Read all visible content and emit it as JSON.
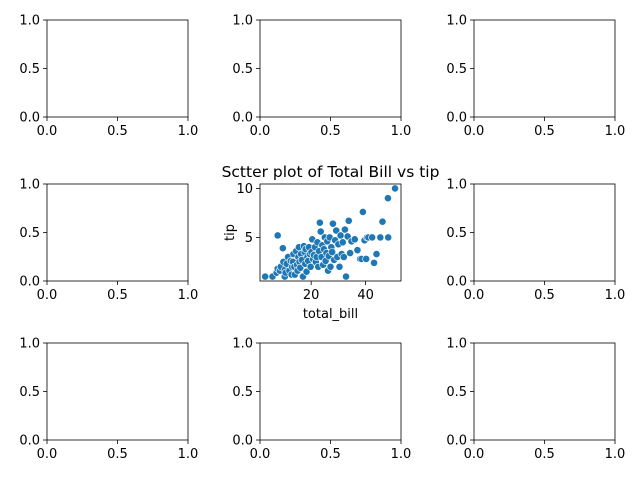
{
  "chart_data": [
    {
      "type": "empty",
      "xlim": [
        0,
        1
      ],
      "ylim": [
        0,
        1
      ],
      "xticks": [
        "0.0",
        "0.5",
        "1.0"
      ],
      "yticks": [
        "0.0",
        "0.5",
        "1.0"
      ]
    },
    {
      "type": "empty",
      "xlim": [
        0,
        1
      ],
      "ylim": [
        0,
        1
      ],
      "xticks": [
        "0.0",
        "0.5",
        "1.0"
      ],
      "yticks": [
        "0.0",
        "0.5",
        "1.0"
      ]
    },
    {
      "type": "empty",
      "xlim": [
        0,
        1
      ],
      "ylim": [
        0,
        1
      ],
      "xticks": [
        "0.0",
        "0.5",
        "1.0"
      ],
      "yticks": [
        "0.0",
        "0.5",
        "1.0"
      ]
    },
    {
      "type": "empty",
      "xlim": [
        0,
        1
      ],
      "ylim": [
        0,
        1
      ],
      "xticks": [
        "0.0",
        "0.5",
        "1.0"
      ],
      "yticks": [
        "0.0",
        "0.5",
        "1.0"
      ]
    },
    {
      "type": "scatter",
      "title": "Sctter plot of Total Bill vs tip",
      "xlabel": "total_bill",
      "ylabel": "tip",
      "xlim": [
        1.2,
        53.0
      ],
      "ylim": [
        0.55,
        10.45
      ],
      "xticks": [
        {
          "v": 20,
          "label": "20"
        },
        {
          "v": 30,
          "label": "30"
        },
        {
          "v": 40,
          "label": "40"
        },
        {
          "v": 50,
          "label": "50"
        }
      ],
      "yticks": [
        {
          "v": 5,
          "label": "5"
        },
        {
          "v": 10,
          "label": "10"
        }
      ],
      "x_tick_values_shown": [
        "20",
        "40"
      ],
      "color": "#1f77b4",
      "points": [
        [
          3.1,
          1.0
        ],
        [
          5.8,
          1.0
        ],
        [
          7.3,
          1.4
        ],
        [
          7.7,
          5.2
        ],
        [
          7.7,
          1.8
        ],
        [
          8.5,
          1.6
        ],
        [
          8.8,
          2.0
        ],
        [
          9.6,
          3.9
        ],
        [
          9.8,
          2.5
        ],
        [
          10.3,
          1.7
        ],
        [
          10.3,
          1.0
        ],
        [
          10.6,
          1.4
        ],
        [
          11.0,
          2.3
        ],
        [
          11.5,
          3.0
        ],
        [
          12.0,
          1.6
        ],
        [
          12.5,
          2.6
        ],
        [
          12.8,
          1.2
        ],
        [
          13.0,
          2.0
        ],
        [
          13.3,
          2.5
        ],
        [
          13.5,
          3.3
        ],
        [
          13.8,
          2.0
        ],
        [
          14.0,
          1.2
        ],
        [
          14.5,
          3.6
        ],
        [
          14.8,
          2.2
        ],
        [
          15.0,
          1.6
        ],
        [
          15.3,
          3.0
        ],
        [
          15.5,
          4.0
        ],
        [
          15.7,
          2.5
        ],
        [
          16.0,
          1.9
        ],
        [
          16.3,
          3.3
        ],
        [
          16.6,
          2.7
        ],
        [
          17.0,
          1.0
        ],
        [
          17.3,
          4.1
        ],
        [
          17.6,
          3.5
        ],
        [
          17.8,
          2.3
        ],
        [
          18.0,
          3.8
        ],
        [
          18.3,
          1.5
        ],
        [
          18.6,
          3.0
        ],
        [
          18.9,
          2.6
        ],
        [
          19.2,
          4.0
        ],
        [
          19.5,
          3.3
        ],
        [
          19.8,
          2.0
        ],
        [
          20.1,
          3.5
        ],
        [
          20.4,
          4.8
        ],
        [
          20.7,
          2.8
        ],
        [
          21.0,
          3.2
        ],
        [
          21.4,
          4.0
        ],
        [
          21.7,
          2.5
        ],
        [
          22.0,
          3.0
        ],
        [
          22.3,
          4.5
        ],
        [
          22.6,
          2.0
        ],
        [
          22.9,
          3.6
        ],
        [
          23.2,
          6.5
        ],
        [
          23.5,
          5.6
        ],
        [
          23.8,
          3.0
        ],
        [
          24.1,
          4.2
        ],
        [
          24.4,
          2.2
        ],
        [
          24.7,
          3.8
        ],
        [
          25.0,
          5.0
        ],
        [
          25.3,
          2.6
        ],
        [
          25.6,
          3.4
        ],
        [
          25.9,
          4.6
        ],
        [
          26.2,
          1.6
        ],
        [
          26.5,
          3.1
        ],
        [
          26.8,
          5.0
        ],
        [
          27.1,
          2.0
        ],
        [
          27.4,
          4.0
        ],
        [
          27.7,
          3.5
        ],
        [
          28.0,
          6.4
        ],
        [
          28.4,
          2.7
        ],
        [
          28.8,
          4.7
        ],
        [
          29.2,
          5.7
        ],
        [
          29.6,
          3.0
        ],
        [
          30.0,
          4.3
        ],
        [
          30.4,
          2.0
        ],
        [
          30.8,
          5.2
        ],
        [
          31.2,
          3.3
        ],
        [
          31.6,
          4.5
        ],
        [
          32.0,
          3.0
        ],
        [
          32.4,
          5.8
        ],
        [
          32.8,
          1.0
        ],
        [
          33.4,
          5.1
        ],
        [
          33.8,
          6.7
        ],
        [
          34.3,
          3.4
        ],
        [
          34.8,
          4.6
        ],
        [
          36.0,
          4.8
        ],
        [
          37.0,
          3.7
        ],
        [
          38.0,
          2.8
        ],
        [
          38.5,
          2.8
        ],
        [
          39.0,
          7.6
        ],
        [
          39.6,
          4.7
        ],
        [
          40.2,
          2.8
        ],
        [
          40.5,
          5.0
        ],
        [
          41.0,
          5.0
        ],
        [
          42.4,
          5.0
        ],
        [
          43.1,
          2.4
        ],
        [
          44.0,
          3.3
        ],
        [
          45.4,
          5.0
        ],
        [
          46.2,
          6.6
        ],
        [
          48.2,
          9.0
        ],
        [
          48.3,
          5.0
        ],
        [
          50.8,
          10.0
        ]
      ]
    },
    {
      "type": "empty",
      "xlim": [
        0,
        1
      ],
      "ylim": [
        0,
        1
      ],
      "xticks": [
        "0.0",
        "0.5",
        "1.0"
      ],
      "yticks": [
        "0.0",
        "0.5",
        "1.0"
      ]
    },
    {
      "type": "empty",
      "xlim": [
        0,
        1
      ],
      "ylim": [
        0,
        1
      ],
      "xticks": [
        "0.0",
        "0.5",
        "1.0"
      ],
      "yticks": [
        "0.0",
        "0.5",
        "1.0"
      ]
    },
    {
      "type": "empty",
      "xlim": [
        0,
        1
      ],
      "ylim": [
        0,
        1
      ],
      "xticks": [
        "0.0",
        "0.5",
        "1.0"
      ],
      "yticks": [
        "0.0",
        "0.5",
        "1.0"
      ]
    },
    {
      "type": "empty",
      "xlim": [
        0,
        1
      ],
      "ylim": [
        0,
        1
      ],
      "xticks": [
        "0.0",
        "0.5",
        "1.0"
      ],
      "yticks": [
        "0.0",
        "0.5",
        "1.0"
      ]
    }
  ]
}
